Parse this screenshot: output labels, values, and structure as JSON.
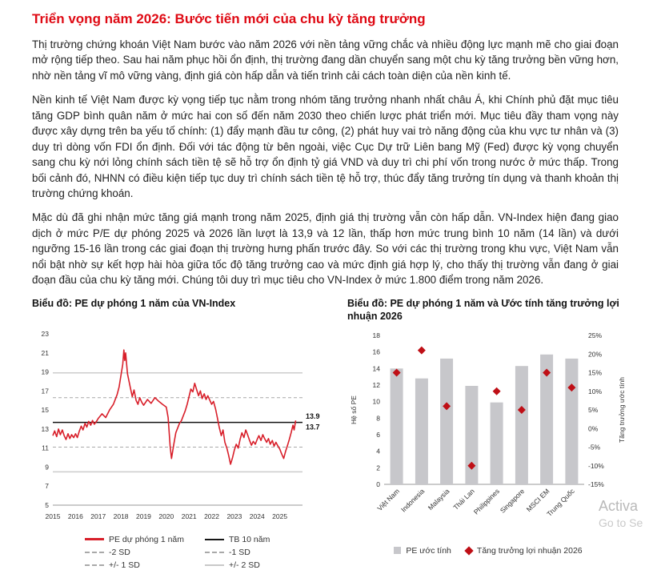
{
  "page": {
    "title": "Triển vọng năm 2026: Bước tiến mới của chu kỳ tăng trưởng",
    "paragraphs": [
      "Thị trường chứng khoán Việt Nam bước vào năm 2026 với nền tảng vững chắc và nhiều động lực mạnh mẽ cho giai đoạn mở rộng tiếp theo. Sau hai năm phục hồi ổn định, thị trường đang dần chuyển sang một chu kỳ tăng trưởng bền vững hơn, nhờ nền tảng vĩ mô vững vàng, định giá còn hấp dẫn và tiến trình cải cách toàn diện của nền kinh tế.",
      "Nền kinh tế Việt Nam được kỳ vọng tiếp tục nằm trong nhóm tăng trưởng nhanh nhất châu Á, khi Chính phủ đặt mục tiêu tăng GDP bình quân năm ở mức hai con số đến năm 2030 theo chiến lược phát triển mới. Mục tiêu đầy tham vọng này được xây dựng trên ba yếu tố chính: (1) đẩy mạnh đầu tư công, (2) phát huy vai trò năng động của khu vực tư nhân và (3) duy trì dòng vốn FDI ổn định. Đối với tác động từ bên ngoài, việc Cục Dự trữ Liên bang Mỹ (Fed) được kỳ vọng chuyển sang chu kỳ nới lỏng chính sách tiền tệ sẽ hỗ trợ ổn định tỷ giá VND và duy trì chi phí vốn trong nước ở mức thấp. Trong bối cảnh đó, NHNN có điều kiện tiếp tục duy trì chính sách tiền tệ hỗ trợ, thúc đẩy tăng trưởng tín dụng và thanh khoản thị trường chứng khoán.",
      "Mặc dù đã ghi nhận mức tăng giá mạnh trong năm 2025, định giá thị trường vẫn còn hấp dẫn. VN-Index hiện đang giao dịch ở mức P/E dự phóng 2025 và 2026 lần lượt là 13,9 và 12 lần, thấp hơn mức trung bình 10 năm (14 lần) và dưới ngưỡng 15-16 lần trong các giai đoạn thị trường hưng phấn trước đây. So với các thị trường trong khu vực, Việt Nam vẫn nổi bật nhờ sự kết hợp hài hòa giữa tốc độ tăng trưởng cao và mức định giá hợp lý, cho thấy thị trường vẫn đang ở giai đoạn đầu của chu kỳ tăng mới. Chúng tôi duy trì mục tiêu cho VN-Index ở mức 1.800 điểm trong năm 2026."
    ]
  },
  "watermark": {
    "line1": "Activa",
    "line2": "Go to Se"
  },
  "colors": {
    "title_red": "#df0a14",
    "line_red": "#d81f2a",
    "bar_gray": "#c7c7cb",
    "diamond_red": "#bf0f16"
  },
  "chart_data": [
    {
      "type": "line",
      "title": "Biểu đồ: PE dự phóng 1 năm của VN-Index",
      "xlim": [
        2015,
        2026
      ],
      "ylim": [
        5,
        23
      ],
      "yticks": [
        23,
        21,
        19,
        17,
        15,
        13,
        11,
        9,
        7,
        5
      ],
      "xticks": [
        2015,
        2016,
        2017,
        2018,
        2019,
        2020,
        2021,
        2022,
        2023,
        2024,
        2025
      ],
      "series": [
        {
          "name": "PE dự phóng 1 năm",
          "color": "#d81f2a",
          "points": [
            [
              2015.0,
              12.3
            ],
            [
              2015.08,
              12.8
            ],
            [
              2015.17,
              12.2
            ],
            [
              2015.25,
              13.0
            ],
            [
              2015.33,
              12.4
            ],
            [
              2015.42,
              12.9
            ],
            [
              2015.5,
              12.3
            ],
            [
              2015.58,
              11.9
            ],
            [
              2015.67,
              12.5
            ],
            [
              2015.75,
              12.0
            ],
            [
              2015.83,
              12.4
            ],
            [
              2015.92,
              12.1
            ],
            [
              2016.0,
              12.5
            ],
            [
              2016.08,
              12.1
            ],
            [
              2016.17,
              12.8
            ],
            [
              2016.25,
              13.3
            ],
            [
              2016.33,
              12.9
            ],
            [
              2016.42,
              13.6
            ],
            [
              2016.5,
              13.2
            ],
            [
              2016.58,
              13.8
            ],
            [
              2016.67,
              13.4
            ],
            [
              2016.75,
              13.9
            ],
            [
              2016.83,
              13.5
            ],
            [
              2016.92,
              13.8
            ],
            [
              2017.0,
              14.1
            ],
            [
              2017.17,
              14.6
            ],
            [
              2017.33,
              14.2
            ],
            [
              2017.5,
              15.0
            ],
            [
              2017.67,
              15.6
            ],
            [
              2017.83,
              16.6
            ],
            [
              2017.92,
              17.4
            ],
            [
              2018.0,
              18.6
            ],
            [
              2018.08,
              19.8
            ],
            [
              2018.13,
              21.3
            ],
            [
              2018.17,
              20.2
            ],
            [
              2018.21,
              21.0
            ],
            [
              2018.29,
              18.8
            ],
            [
              2018.42,
              17.3
            ],
            [
              2018.5,
              16.4
            ],
            [
              2018.58,
              17.1
            ],
            [
              2018.67,
              16.0
            ],
            [
              2018.75,
              15.6
            ],
            [
              2018.83,
              16.3
            ],
            [
              2018.92,
              15.8
            ],
            [
              2019.0,
              15.5
            ],
            [
              2019.17,
              16.1
            ],
            [
              2019.33,
              15.7
            ],
            [
              2019.5,
              16.3
            ],
            [
              2019.67,
              15.9
            ],
            [
              2019.83,
              15.6
            ],
            [
              2020.0,
              15.3
            ],
            [
              2020.08,
              14.2
            ],
            [
              2020.17,
              11.2
            ],
            [
              2020.23,
              9.9
            ],
            [
              2020.33,
              11.4
            ],
            [
              2020.42,
              12.6
            ],
            [
              2020.5,
              13.1
            ],
            [
              2020.58,
              13.6
            ],
            [
              2020.67,
              13.9
            ],
            [
              2020.75,
              14.4
            ],
            [
              2020.83,
              14.9
            ],
            [
              2020.92,
              15.6
            ],
            [
              2021.0,
              16.4
            ],
            [
              2021.08,
              17.2
            ],
            [
              2021.17,
              16.9
            ],
            [
              2021.25,
              17.8
            ],
            [
              2021.33,
              17.2
            ],
            [
              2021.42,
              16.5
            ],
            [
              2021.5,
              17.0
            ],
            [
              2021.58,
              16.2
            ],
            [
              2021.67,
              16.7
            ],
            [
              2021.75,
              16.1
            ],
            [
              2021.83,
              16.5
            ],
            [
              2021.92,
              16.0
            ],
            [
              2022.0,
              15.6
            ],
            [
              2022.08,
              15.9
            ],
            [
              2022.17,
              15.1
            ],
            [
              2022.25,
              14.2
            ],
            [
              2022.33,
              13.2
            ],
            [
              2022.42,
              12.3
            ],
            [
              2022.5,
              12.9
            ],
            [
              2022.58,
              11.6
            ],
            [
              2022.67,
              11.0
            ],
            [
              2022.75,
              10.2
            ],
            [
              2022.83,
              9.3
            ],
            [
              2022.92,
              10.0
            ],
            [
              2023.0,
              10.8
            ],
            [
              2023.08,
              11.4
            ],
            [
              2023.17,
              11.0
            ],
            [
              2023.25,
              11.9
            ],
            [
              2023.33,
              12.6
            ],
            [
              2023.42,
              12.1
            ],
            [
              2023.5,
              12.9
            ],
            [
              2023.58,
              12.4
            ],
            [
              2023.67,
              11.8
            ],
            [
              2023.75,
              11.3
            ],
            [
              2023.83,
              11.7
            ],
            [
              2023.92,
              11.4
            ],
            [
              2024.0,
              11.9
            ],
            [
              2024.08,
              12.3
            ],
            [
              2024.17,
              11.8
            ],
            [
              2024.25,
              12.4
            ],
            [
              2024.33,
              12.0
            ],
            [
              2024.42,
              11.6
            ],
            [
              2024.5,
              12.0
            ],
            [
              2024.58,
              11.4
            ],
            [
              2024.67,
              11.8
            ],
            [
              2024.75,
              11.2
            ],
            [
              2024.83,
              11.6
            ],
            [
              2024.92,
              11.2
            ],
            [
              2025.0,
              10.9
            ],
            [
              2025.08,
              10.4
            ],
            [
              2025.17,
              9.9
            ],
            [
              2025.25,
              10.6
            ],
            [
              2025.33,
              11.2
            ],
            [
              2025.42,
              11.9
            ],
            [
              2025.5,
              12.6
            ],
            [
              2025.58,
              13.4
            ],
            [
              2025.63,
              12.9
            ],
            [
              2025.7,
              13.9
            ]
          ]
        }
      ],
      "ref_lines": [
        {
          "name": "TB 10 năm",
          "value": 13.7,
          "color": "#141414",
          "dashed": false,
          "width": 1.5
        },
        {
          "name": "+1 SD",
          "value": 16.3,
          "color": "#a9a9a9",
          "dashed": true,
          "width": 1
        },
        {
          "name": "-1 SD",
          "value": 11.1,
          "color": "#a9a9a9",
          "dashed": true,
          "width": 1
        },
        {
          "name": "+2 SD",
          "value": 18.9,
          "color": "#cccccc",
          "dashed": false,
          "width": 1.5
        },
        {
          "name": "-2 SD",
          "value": 8.5,
          "color": "#cccccc",
          "dashed": false,
          "width": 1.5
        }
      ],
      "annotations": [
        {
          "text": "13.9",
          "value": 13.9
        },
        {
          "text": "13.7",
          "value": 13.7
        }
      ],
      "legend": [
        {
          "label": "PE dự phóng 1 năm",
          "swatch": "red-line"
        },
        {
          "label": "TB 10 năm",
          "swatch": "black-line"
        },
        {
          "label": "-2 SD",
          "swatch": "dash"
        },
        {
          "label": "-1 SD",
          "swatch": "dash"
        },
        {
          "label": "+/- 1 SD",
          "swatch": "dash"
        },
        {
          "label": "+/- 2 SD",
          "swatch": "gray-line"
        }
      ]
    },
    {
      "type": "bar+scatter",
      "title": "Biểu đồ: PE dự phóng 1 năm và Ước tính tăng trưởng lợi nhuận 2026",
      "categories": [
        "Việt Nam",
        "Indonesia",
        "Malaysia",
        "Thái Lan",
        "Philippines",
        "Singapore",
        "MSCI EM",
        "Trung Quốc"
      ],
      "bar_series": {
        "name": "PE ước tính",
        "color": "#c7c7cb",
        "values": [
          14,
          12.8,
          15.2,
          11.9,
          9.9,
          14.3,
          15.7,
          15.2
        ]
      },
      "point_series": {
        "name": "Tăng trưởng lợi nhuận 2026",
        "color": "#bf0f16",
        "values_percent": [
          15,
          21,
          6,
          -10,
          10,
          5,
          15,
          11
        ]
      },
      "left_axis": {
        "label": "Hệ số PE",
        "min": 0,
        "max": 18,
        "step": 2
      },
      "right_axis": {
        "label": "Tăng trưởng ước tính",
        "min": -15,
        "max": 25,
        "step": 5,
        "suffix": "%"
      },
      "legend": [
        {
          "label": "PE ước tính",
          "swatch": "gray-square"
        },
        {
          "label": "Tăng trưởng lợi nhuận 2026",
          "swatch": "red-diamond"
        }
      ]
    }
  ]
}
